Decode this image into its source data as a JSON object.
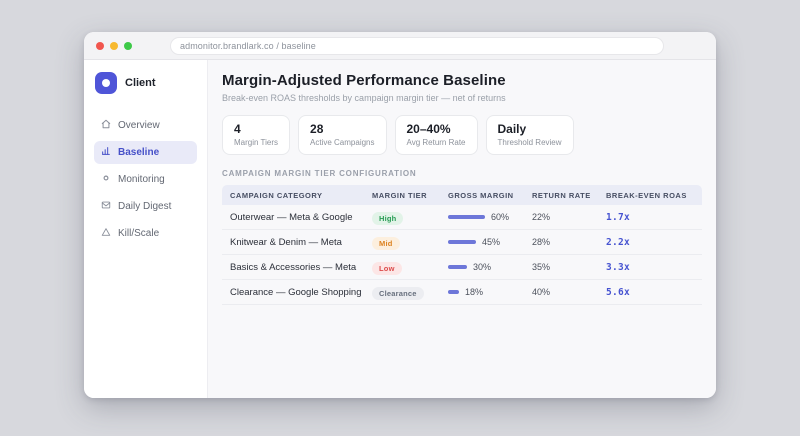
{
  "browser": {
    "url": "admonitor.brandlark.co / baseline"
  },
  "sidebar": {
    "brand": "Client",
    "items": [
      {
        "label": "Overview",
        "icon": "home-icon",
        "active": false
      },
      {
        "label": "Baseline",
        "icon": "bar-chart-icon",
        "active": true
      },
      {
        "label": "Monitoring",
        "icon": "dot-icon",
        "active": false
      },
      {
        "label": "Daily Digest",
        "icon": "mail-icon",
        "active": false
      },
      {
        "label": "Kill/Scale",
        "icon": "triangle-icon",
        "active": false
      }
    ]
  },
  "header": {
    "title": "Margin-Adjusted Performance Baseline",
    "subtitle": "Break-even ROAS thresholds by campaign margin tier — net of returns"
  },
  "stats": [
    {
      "value": "4",
      "label": "Margin Tiers"
    },
    {
      "value": "28",
      "label": "Active Campaigns"
    },
    {
      "value": "20–40%",
      "label": "Avg Return Rate"
    },
    {
      "value": "Daily",
      "label": "Threshold Review"
    }
  ],
  "section_label": "CAMPAIGN MARGIN TIER CONFIGURATION",
  "table": {
    "columns": [
      "CAMPAIGN CATEGORY",
      "MARGIN TIER",
      "GROSS MARGIN",
      "RETURN RATE",
      "BREAK-EVEN ROAS"
    ],
    "rows": [
      {
        "category": "Outerwear — Meta & Google",
        "tier": "High",
        "gross_margin": "60%",
        "gross_margin_pct": 60,
        "return_rate": "22%",
        "breakeven_roas": "1.7x"
      },
      {
        "category": "Knitwear & Denim — Meta",
        "tier": "Mid",
        "gross_margin": "45%",
        "gross_margin_pct": 45,
        "return_rate": "28%",
        "breakeven_roas": "2.2x"
      },
      {
        "category": "Basics & Accessories — Meta",
        "tier": "Low",
        "gross_margin": "30%",
        "gross_margin_pct": 30,
        "return_rate": "35%",
        "breakeven_roas": "3.3x"
      },
      {
        "category": "Clearance — Google Shopping",
        "tier": "Clearance",
        "gross_margin": "18%",
        "gross_margin_pct": 18,
        "return_rate": "40%",
        "breakeven_roas": "5.6x"
      }
    ]
  },
  "colors": {
    "accent": "#4f55d8",
    "active_nav_bg": "#e9eaf8",
    "table_header_bg": "#eaecf6",
    "margin_bar": "#6d77d9",
    "roas_text": "#4653d1",
    "badge_high_text": "#259b52",
    "badge_mid_text": "#dc8220",
    "badge_low_text": "#dc4a4a",
    "badge_clearance_text": "#676f7d"
  }
}
